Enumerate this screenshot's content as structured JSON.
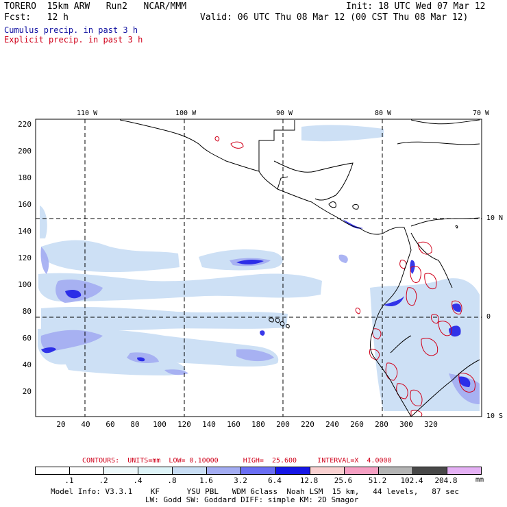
{
  "header": {
    "model": "TORERO  15km ARW   Run2   NCAR/MMM",
    "init": "Init: 18 UTC Wed 07 Mar 12",
    "fcst": "Fcst:   12 h",
    "valid": "Valid: 06 UTC Thu 08 Mar 12 (00 CST Thu 08 Mar 12)",
    "cumulus": "Cumulus precip. in past 3 h",
    "explicit": "Explicit precip. in past 3 h",
    "cumulus_color": "#1010a0",
    "explicit_color": "#d0001a"
  },
  "lon_labels": [
    "110 W",
    "100 W",
    "90 W",
    "80 W",
    "70 W"
  ],
  "lat_labels": [
    "10 N",
    "0",
    "10 S"
  ],
  "y_ticks": [
    "220",
    "200",
    "180",
    "160",
    "140",
    "120",
    "100",
    "80",
    "60",
    "40",
    "20"
  ],
  "x_ticks": [
    "20",
    "40",
    "60",
    "80",
    "100",
    "120",
    "140",
    "160",
    "180",
    "200",
    "220",
    "240",
    "260",
    "280",
    "300",
    "320"
  ],
  "contours_text": "CONTOURS:  UNITS=mm  LOW= 0.10000      HIGH=  25.600     INTERVAL=X  4.0000",
  "colorbar": {
    "labels": [
      ".1",
      ".2",
      ".4",
      ".8",
      "1.6",
      "3.2",
      "6.4",
      "12.8",
      "25.6",
      "51.2",
      "102.4",
      "204.8"
    ],
    "units": "mm",
    "colors": [
      "#ffffff",
      "#ffffff",
      "#eef9fb",
      "#def4f8",
      "#c8ddf4",
      "#a3acf2",
      "#6a6ef4",
      "#1616e6",
      "#f9d0d0",
      "#f59fc2",
      "#b4b4b4",
      "#484848",
      "#e4b0f4"
    ]
  },
  "footer": {
    "line1": "Model Info: V3.3.1    KF      YSU PBL   WDM 6class  Noah LSM  15 km,   44 levels,   87 sec",
    "line2": "LW: Godd SW: Goddard DIFF: simple KM: 2D Smagor"
  }
}
